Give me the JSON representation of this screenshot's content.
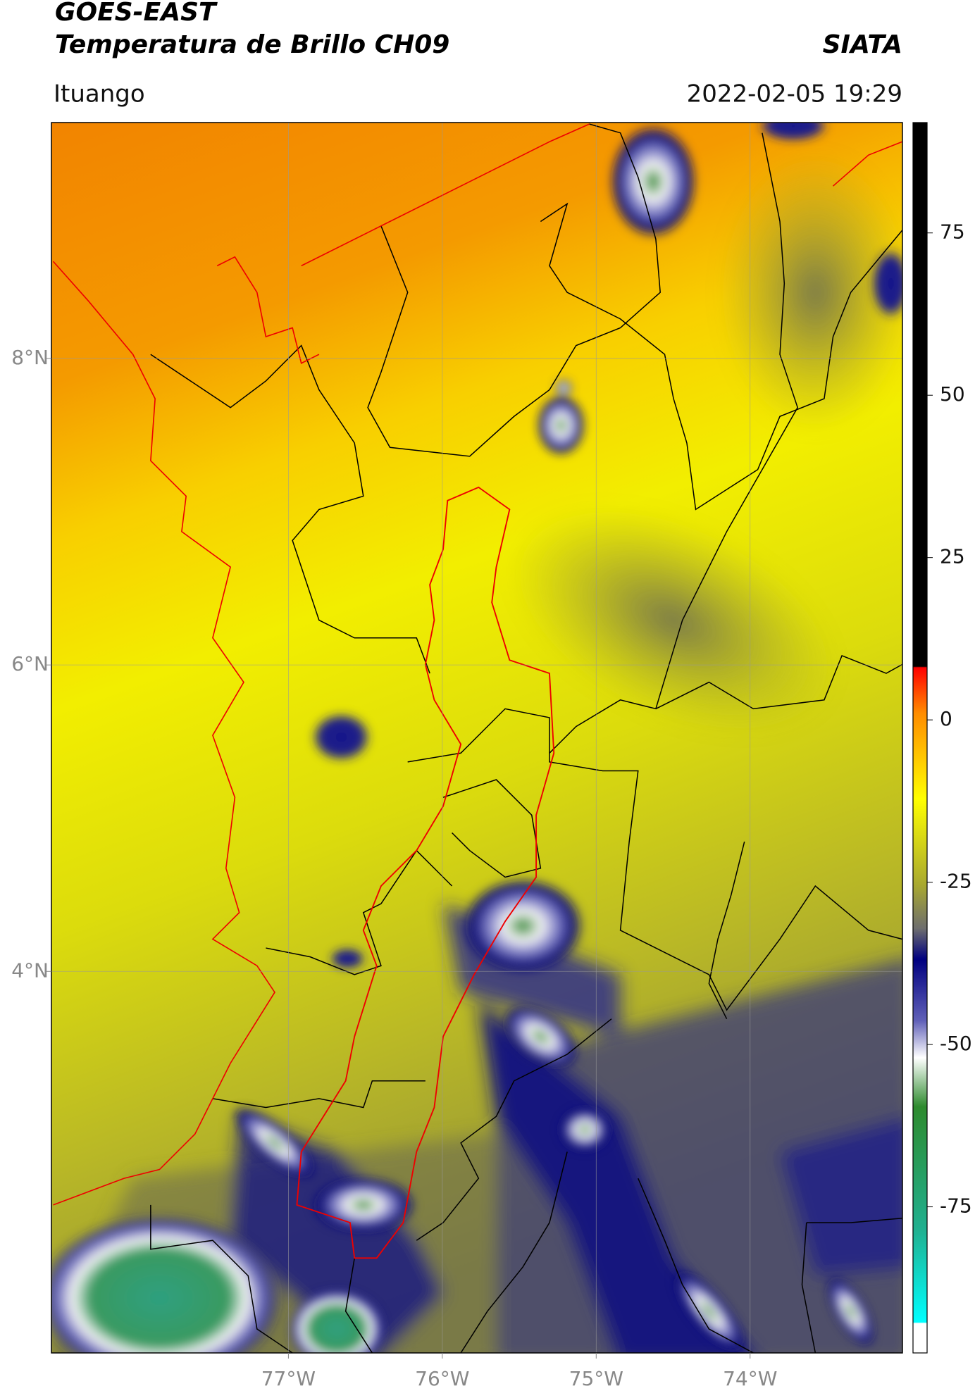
{
  "chart_data": {
    "type": "map",
    "title": "GOES-EAST",
    "subtitle": "Temperatura de Brillo CH09",
    "source": "SIATA",
    "location": "Ituango",
    "datetime": "2022-02-05 19:29",
    "xlim": [
      -78.54,
      -73.01
    ],
    "ylim": [
      1.51,
      9.54
    ],
    "xticks": [
      {
        "value": -77,
        "label": "77°W"
      },
      {
        "value": -76,
        "label": "76°W"
      },
      {
        "value": -75,
        "label": "75°W"
      },
      {
        "value": -74,
        "label": "74°W"
      }
    ],
    "yticks": [
      {
        "value": 8,
        "label": "8°N"
      },
      {
        "value": 6,
        "label": "6°N"
      },
      {
        "value": 4,
        "label": "4°N"
      }
    ],
    "grid": true,
    "colorbar": {
      "lim": [
        -97.5,
        92
      ],
      "ticks": [
        75,
        50,
        25,
        0,
        -25,
        -50,
        -75
      ]
    }
  }
}
